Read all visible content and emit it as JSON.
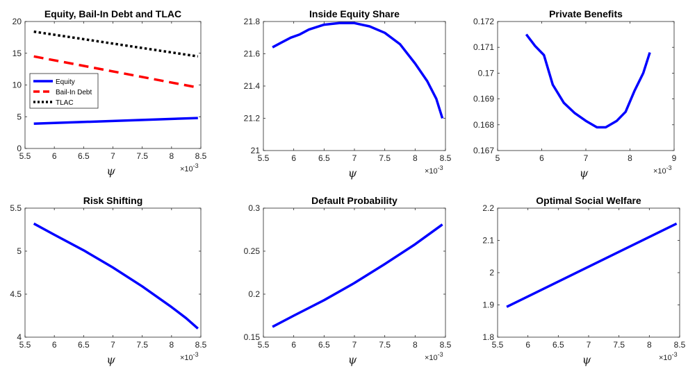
{
  "chart_data": [
    {
      "type": "line",
      "title": "Equity, Bail-In Debt and TLAC",
      "xlabel": "ψ",
      "x_multiplier": "×10",
      "x_multiplier_exp": "-3",
      "xlim": [
        5.5,
        8.5
      ],
      "ylim": [
        0,
        20
      ],
      "xticks": [
        "5.5",
        "6",
        "6.5",
        "7",
        "7.5",
        "8",
        "8.5"
      ],
      "yticks": [
        "0",
        "5",
        "10",
        "15",
        "20"
      ],
      "legend": "left",
      "series": [
        {
          "name": "Equity",
          "color": "#0000ff",
          "style": "solid",
          "x": [
            5.65,
            8.45
          ],
          "y": [
            3.9,
            4.8
          ]
        },
        {
          "name": "Bail-In Debt",
          "color": "#ff0000",
          "style": "dashed",
          "x": [
            5.65,
            8.45
          ],
          "y": [
            14.5,
            9.6
          ]
        },
        {
          "name": "TLAC",
          "color": "#000000",
          "style": "dotted",
          "x": [
            5.65,
            8.45
          ],
          "y": [
            18.4,
            14.5
          ]
        }
      ]
    },
    {
      "type": "line",
      "title": "Inside Equity Share",
      "xlabel": "ψ",
      "x_multiplier": "×10",
      "x_multiplier_exp": "-3",
      "xlim": [
        5.5,
        8.5
      ],
      "ylim": [
        21,
        21.8
      ],
      "xticks": [
        "5.5",
        "6",
        "6.5",
        "7",
        "7.5",
        "8",
        "8.5"
      ],
      "yticks": [
        "21",
        "21.2",
        "21.4",
        "21.6",
        "21.8"
      ],
      "series": [
        {
          "color": "#0000ff",
          "style": "solid",
          "x": [
            5.65,
            5.8,
            5.95,
            6.1,
            6.25,
            6.5,
            6.75,
            7.0,
            7.25,
            7.5,
            7.75,
            8.0,
            8.2,
            8.35,
            8.45
          ],
          "y": [
            21.64,
            21.67,
            21.7,
            21.72,
            21.75,
            21.78,
            21.79,
            21.79,
            21.77,
            21.73,
            21.66,
            21.54,
            21.43,
            21.32,
            21.2
          ]
        }
      ]
    },
    {
      "type": "line",
      "title": "Private Benefits",
      "xlabel": "ψ",
      "x_multiplier": "×10",
      "x_multiplier_exp": "-3",
      "xlim": [
        5,
        9
      ],
      "ylim": [
        0.167,
        0.172
      ],
      "xticks": [
        "5",
        "6",
        "7",
        "8",
        "9"
      ],
      "yticks": [
        "0.167",
        "0.168",
        "0.169",
        "0.17",
        "0.171",
        "0.172"
      ],
      "series": [
        {
          "color": "#0000ff",
          "style": "solid",
          "x": [
            5.65,
            5.85,
            6.05,
            6.25,
            6.5,
            6.75,
            7.0,
            7.25,
            7.45,
            7.7,
            7.9,
            8.1,
            8.3,
            8.45
          ],
          "y": [
            0.1715,
            0.17105,
            0.1707,
            0.16955,
            0.16885,
            0.16845,
            0.16815,
            0.1679,
            0.1679,
            0.16815,
            0.1685,
            0.1693,
            0.17,
            0.1708
          ]
        }
      ]
    },
    {
      "type": "line",
      "title": "Risk Shifting",
      "xlabel": "ψ",
      "x_multiplier": "×10",
      "x_multiplier_exp": "-3",
      "xlim": [
        5.5,
        8.5
      ],
      "ylim": [
        4,
        5.5
      ],
      "xticks": [
        "5.5",
        "6",
        "6.5",
        "7",
        "7.5",
        "8",
        "8.5"
      ],
      "yticks": [
        "4",
        "4.5",
        "5",
        "5.5"
      ],
      "series": [
        {
          "color": "#0000ff",
          "style": "solid",
          "x": [
            5.65,
            6.0,
            6.5,
            7.0,
            7.5,
            8.0,
            8.25,
            8.45
          ],
          "y": [
            5.32,
            5.19,
            5.01,
            4.81,
            4.59,
            4.35,
            4.22,
            4.1
          ]
        }
      ]
    },
    {
      "type": "line",
      "title": "Default Probability",
      "xlabel": "ψ",
      "x_multiplier": "×10",
      "x_multiplier_exp": "-3",
      "xlim": [
        5.5,
        8.5
      ],
      "ylim": [
        0.15,
        0.3
      ],
      "xticks": [
        "5.5",
        "6",
        "6.5",
        "7",
        "7.5",
        "8",
        "8.5"
      ],
      "yticks": [
        "0.15",
        "0.2",
        "0.25",
        "0.3"
      ],
      "series": [
        {
          "color": "#0000ff",
          "style": "solid",
          "x": [
            5.65,
            6.0,
            6.5,
            7.0,
            7.5,
            8.0,
            8.45
          ],
          "y": [
            0.162,
            0.175,
            0.193,
            0.213,
            0.235,
            0.258,
            0.281
          ]
        }
      ]
    },
    {
      "type": "line",
      "title": "Optimal Social Welfare",
      "xlabel": "ψ",
      "x_multiplier": "×10",
      "x_multiplier_exp": "-3",
      "xlim": [
        5.5,
        8.5
      ],
      "ylim": [
        1.8,
        2.2
      ],
      "xticks": [
        "5.5",
        "6",
        "6.5",
        "7",
        "7.5",
        "8",
        "8.5"
      ],
      "yticks": [
        "1.8",
        "1.9",
        "2",
        "2.1",
        "2.2"
      ],
      "series": [
        {
          "color": "#0000ff",
          "style": "solid",
          "x": [
            5.65,
            8.45
          ],
          "y": [
            1.894,
            2.152
          ]
        }
      ]
    }
  ]
}
